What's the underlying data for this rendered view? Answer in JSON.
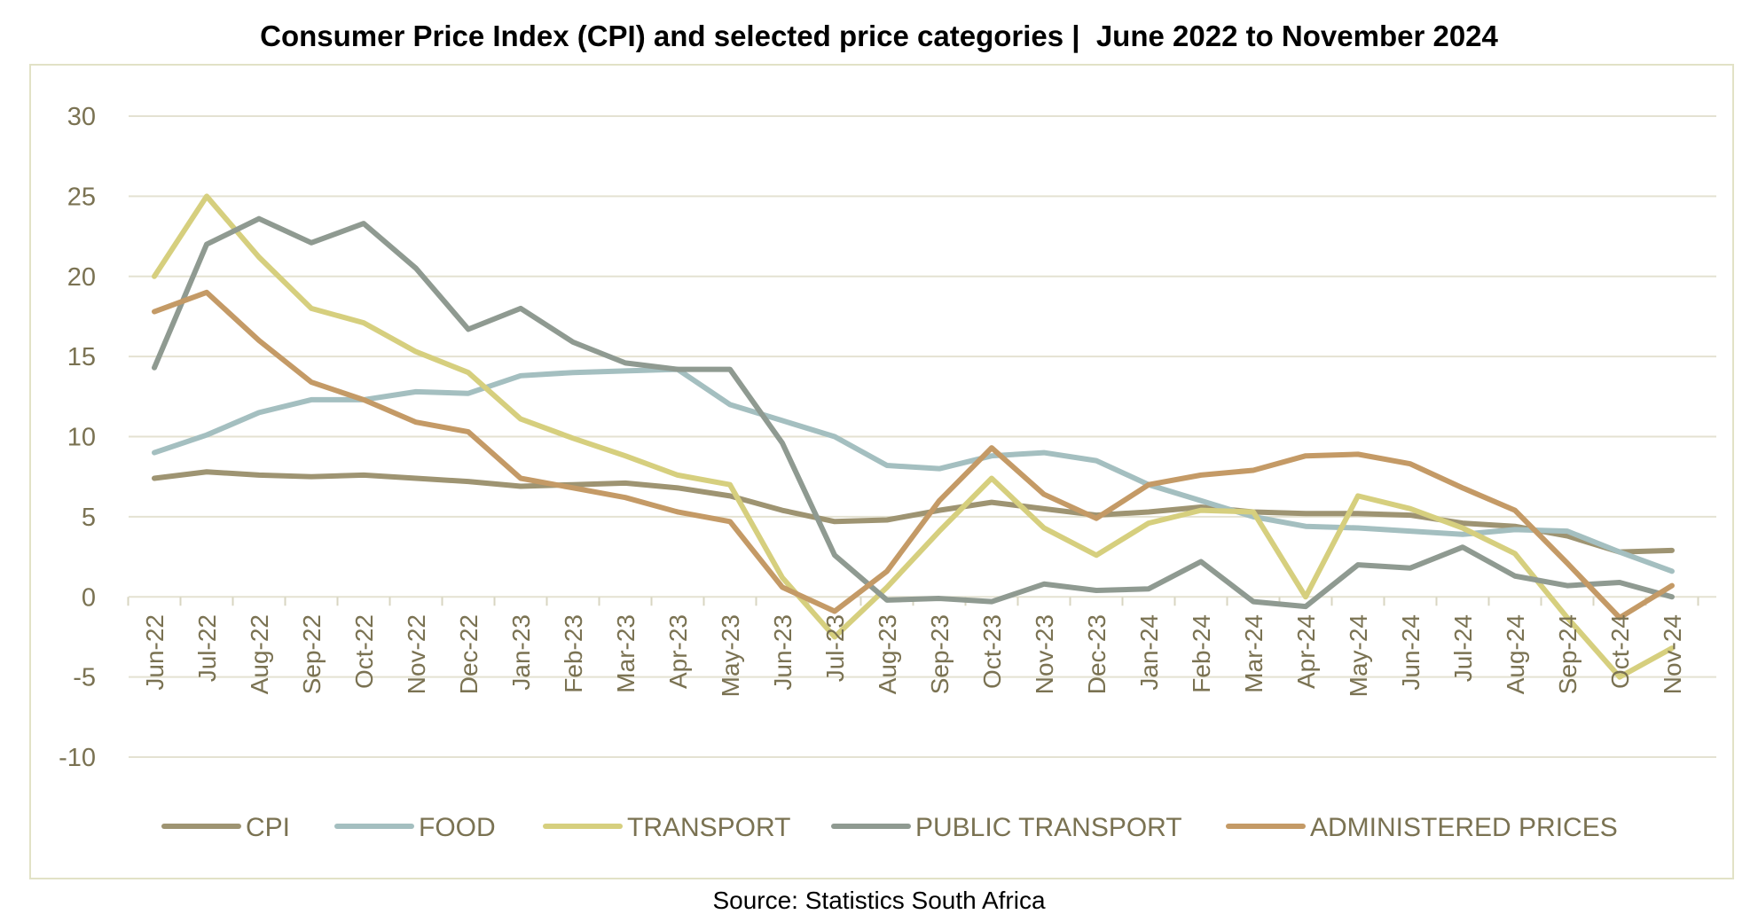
{
  "title": "Consumer Price Index (CPI) and selected price categories |  June 2022 to November 2024",
  "source": "Source: Statistics South Africa",
  "chart_data": {
    "type": "line",
    "title": "Consumer Price Index (CPI) and selected price categories |  June 2022 to November 2024",
    "xlabel": "",
    "ylabel": "",
    "ylim": [
      -10,
      30
    ],
    "yticks": [
      "30",
      "25",
      "20",
      "15",
      "10",
      "5",
      "0",
      "-5",
      "-10"
    ],
    "grid": true,
    "legend_position": "bottom",
    "categories": [
      "Jun-22",
      "Jul-22",
      "Aug-22",
      "Sep-22",
      "Oct-22",
      "Nov-22",
      "Dec-22",
      "Jan-23",
      "Feb-23",
      "Mar-23",
      "Apr-23",
      "May-23",
      "Jun-23",
      "Jul-23",
      "Aug-23",
      "Sep-23",
      "Oct-23",
      "Nov-23",
      "Dec-23",
      "Jan-24",
      "Feb-24",
      "Mar-24",
      "Apr-24",
      "May-24",
      "Jun-24",
      "Jul-24",
      "Aug-24",
      "Sep-24",
      "Oct-24",
      "Nov-24"
    ],
    "series": [
      {
        "name": "CPI",
        "color": "#9e9472",
        "values": [
          7.4,
          7.8,
          7.6,
          7.5,
          7.6,
          7.4,
          7.2,
          6.9,
          7.0,
          7.1,
          6.8,
          6.3,
          5.4,
          4.7,
          4.8,
          5.4,
          5.9,
          5.5,
          5.1,
          5.3,
          5.6,
          5.3,
          5.2,
          5.2,
          5.1,
          4.6,
          4.4,
          3.8,
          2.8,
          2.9
        ]
      },
      {
        "name": "FOOD",
        "color": "#a4bfc0",
        "values": [
          9.0,
          10.1,
          11.5,
          12.3,
          12.3,
          12.8,
          12.7,
          13.8,
          14.0,
          14.1,
          14.2,
          12.0,
          11.0,
          10.0,
          8.2,
          8.0,
          8.8,
          9.0,
          8.5,
          7.0,
          6.0,
          5.0,
          4.4,
          4.3,
          4.1,
          3.9,
          4.2,
          4.1,
          2.8,
          1.6
        ]
      },
      {
        "name": "TRANSPORT",
        "color": "#d6cf7e",
        "values": [
          20.0,
          25.0,
          21.2,
          18.0,
          17.1,
          15.3,
          14.0,
          11.1,
          9.9,
          8.8,
          7.6,
          7.0,
          1.2,
          -2.5,
          0.6,
          4.1,
          7.4,
          4.3,
          2.6,
          4.6,
          5.4,
          5.3,
          0.0,
          6.3,
          5.5,
          4.3,
          2.7,
          -1.3,
          -5.0,
          -3.2
        ]
      },
      {
        "name": "PUBLIC TRANSPORT",
        "color": "#8f9a91",
        "values": [
          14.3,
          22.0,
          23.6,
          22.1,
          23.3,
          20.5,
          16.7,
          18.0,
          15.9,
          14.6,
          14.2,
          14.2,
          9.6,
          2.6,
          -0.2,
          -0.1,
          -0.3,
          0.8,
          0.4,
          0.5,
          2.2,
          -0.3,
          -0.6,
          2.0,
          1.8,
          3.1,
          1.3,
          0.7,
          0.9,
          0.0
        ]
      },
      {
        "name": "ADMINISTERED PRICES",
        "color": "#c49a66",
        "values": [
          17.8,
          19.0,
          16.0,
          13.4,
          12.3,
          10.9,
          10.3,
          7.4,
          6.8,
          6.2,
          5.3,
          4.7,
          0.6,
          -0.9,
          1.6,
          6.0,
          9.3,
          6.4,
          4.9,
          7.0,
          7.6,
          7.9,
          8.8,
          8.9,
          8.3,
          6.8,
          5.4,
          2.1,
          -1.3,
          0.7
        ]
      }
    ]
  }
}
